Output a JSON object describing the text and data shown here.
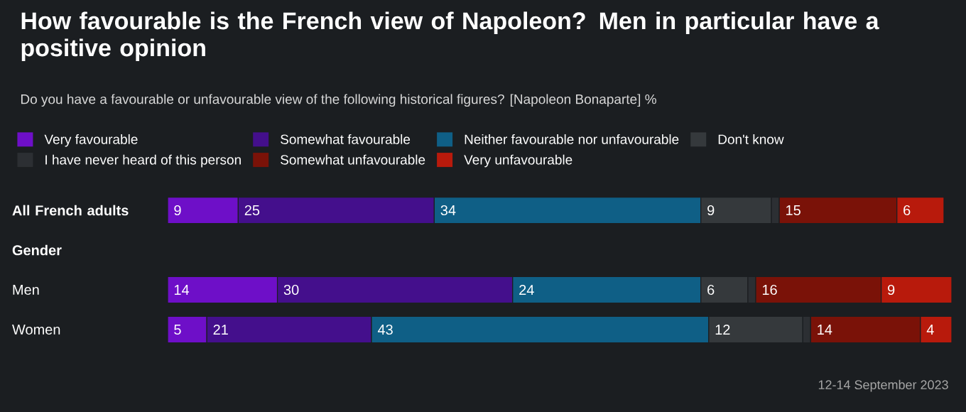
{
  "chart_data": {
    "type": "bar",
    "orientation": "horizontal",
    "stacked": true,
    "title": "How favourable is the French view of Napoleon? Men in particular have a positive opinion",
    "subtitle": "Do you have a favourable or unfavourable view of the following historical figures? [Napoleon Bonaparte] %",
    "categories": [
      "All French adults",
      "Gender",
      "Men",
      "Women"
    ],
    "xlim": [
      0,
      100
    ],
    "tick_labels": "y",
    "legend": "top",
    "series": [
      {
        "name": "Very favourable",
        "color": "#6e0fc8",
        "values": [
          9,
          null,
          14,
          5
        ],
        "value_labels": [
          "9",
          null,
          "14",
          "5"
        ]
      },
      {
        "name": "Somewhat favourable",
        "color": "#440f8c",
        "values": [
          25,
          null,
          30,
          21
        ],
        "value_labels": [
          "25",
          null,
          "30",
          "21"
        ]
      },
      {
        "name": "Neither favourable nor unfavourable",
        "color": "#0f5f86",
        "values": [
          34,
          null,
          24,
          43
        ],
        "value_labels": [
          "34",
          null,
          "24",
          "43"
        ]
      },
      {
        "name": "Don't know",
        "color": "#35393c",
        "values": [
          9,
          null,
          6,
          12
        ],
        "value_labels": [
          "9",
          null,
          "6",
          "12"
        ]
      },
      {
        "name": "I have never heard of this person",
        "color": "#2c2f33",
        "values": [
          1,
          null,
          1,
          1
        ],
        "value_labels": [
          null,
          null,
          null,
          null
        ]
      },
      {
        "name": "Somewhat unfavourable",
        "color": "#7a1208",
        "values": [
          15,
          null,
          16,
          14
        ],
        "value_labels": [
          "15",
          null,
          "16",
          "14"
        ]
      },
      {
        "name": "Very unfavourable",
        "color": "#b81a0c",
        "values": [
          6,
          null,
          9,
          4
        ],
        "value_labels": [
          "6",
          null,
          "9",
          "4"
        ]
      }
    ],
    "annotations": [
      "12-14 September 2023"
    ]
  }
}
